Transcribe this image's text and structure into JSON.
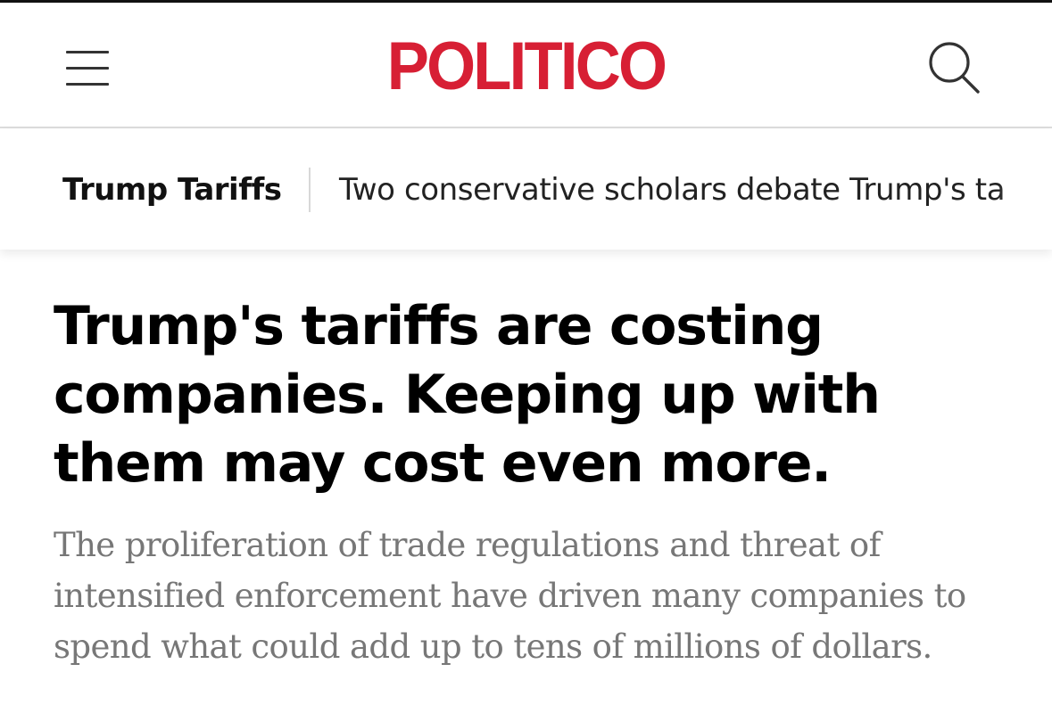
{
  "header": {
    "logo_text": "POLITICO",
    "brand_color": "#d71f34",
    "menu_icon": "hamburger-menu-icon",
    "search_icon": "search-icon"
  },
  "breadcrumb": {
    "section_label": "Trump Tariffs",
    "related_story": "Two conservative scholars debate Trump's ta"
  },
  "article": {
    "headline": "Trump's tariffs are costing companies. Keeping up with them may cost even more.",
    "dek": "The proliferation of trade regulations and threat of intensified enforcement have driven many companies to spend what could add up to tens of millions of dollars."
  }
}
